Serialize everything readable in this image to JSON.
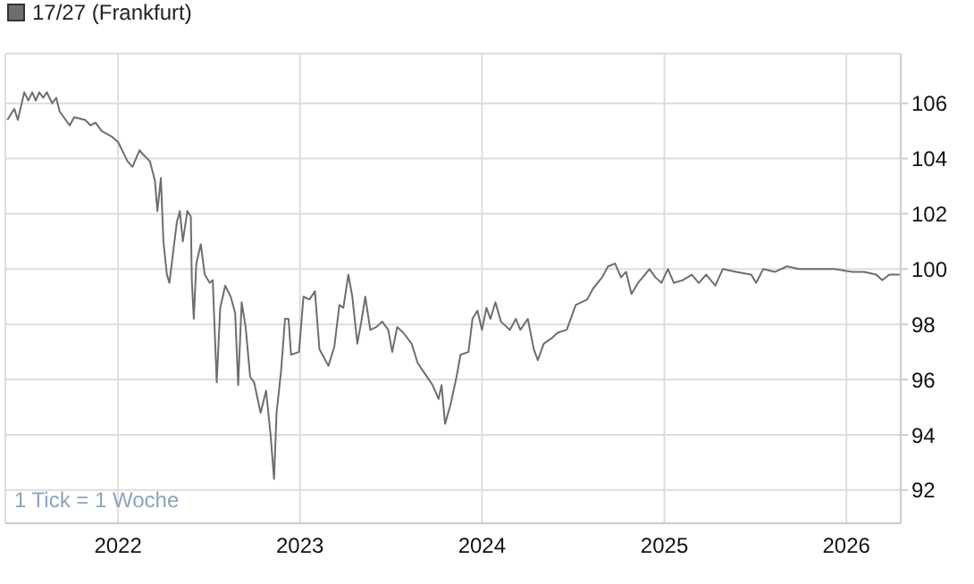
{
  "chart_data": {
    "type": "line",
    "legend": "top left",
    "grid": true,
    "marker": "none",
    "line_style": "solid",
    "annotations": [
      "1 Tick = 1 Woche"
    ],
    "xlim": [
      "2021-05-20",
      "2026-04-20"
    ],
    "xticks": [
      {
        "value": "2022-01-01",
        "label": "2022"
      },
      {
        "value": "2023-01-01",
        "label": "2023"
      },
      {
        "value": "2024-01-01",
        "label": "2024"
      },
      {
        "value": "2025-01-01",
        "label": "2025"
      },
      {
        "value": "2026-01-01",
        "label": "2026"
      }
    ],
    "ylim": [
      90.8,
      107.8
    ],
    "yticks": [
      92,
      94,
      96,
      98,
      100,
      102,
      104,
      106
    ],
    "x": [
      "2021-05-24",
      "2021-06-07",
      "2021-06-14",
      "2021-06-27",
      "2021-07-05",
      "2021-07-13",
      "2021-07-20",
      "2021-07-27",
      "2021-08-04",
      "2021-08-11",
      "2021-08-22",
      "2021-08-30",
      "2021-09-06",
      "2021-09-18",
      "2021-09-26",
      "2021-10-05",
      "2021-10-27",
      "2021-11-07",
      "2021-11-17",
      "2021-11-29",
      "2021-12-19",
      "2022-01-01",
      "2022-01-12",
      "2022-01-20",
      "2022-01-30",
      "2022-02-13",
      "2022-02-23",
      "2022-03-06",
      "2022-03-16",
      "2022-03-21",
      "2022-03-28",
      "2022-04-02",
      "2022-04-09",
      "2022-04-14",
      "2022-04-29",
      "2022-05-05",
      "2022-05-11",
      "2022-05-20",
      "2022-05-27",
      "2022-05-29",
      "2022-06-02",
      "2022-06-07",
      "2022-06-16",
      "2022-06-24",
      "2022-07-04",
      "2022-07-10",
      "2022-07-18",
      "2022-07-25",
      "2022-08-04",
      "2022-08-15",
      "2022-08-24",
      "2022-08-30",
      "2022-09-06",
      "2022-09-14",
      "2022-09-23",
      "2022-10-01",
      "2022-10-14",
      "2022-10-25",
      "2022-11-03",
      "2022-11-10",
      "2022-11-15",
      "2022-11-24",
      "2022-12-02",
      "2022-12-09",
      "2022-12-14",
      "2022-12-30",
      "2023-01-08",
      "2023-01-20",
      "2023-01-31",
      "2023-02-09",
      "2023-02-27",
      "2023-03-11",
      "2023-03-21",
      "2023-03-29",
      "2023-04-08",
      "2023-04-16",
      "2023-04-26",
      "2023-05-04",
      "2023-05-12",
      "2023-05-22",
      "2023-06-03",
      "2023-06-15",
      "2023-06-27",
      "2023-07-05",
      "2023-07-15",
      "2023-07-27",
      "2023-08-13",
      "2023-08-25",
      "2023-09-09",
      "2023-09-24",
      "2023-10-06",
      "2023-10-12",
      "2023-10-19",
      "2023-10-30",
      "2023-11-11",
      "2023-11-19",
      "2023-12-05",
      "2023-12-13",
      "2023-12-23",
      "2024-01-01",
      "2024-01-10",
      "2024-01-18",
      "2024-01-28",
      "2024-02-08",
      "2024-02-26",
      "2024-03-09",
      "2024-03-18",
      "2024-04-02",
      "2024-04-14",
      "2024-04-22",
      "2024-05-04",
      "2024-05-20",
      "2024-06-01",
      "2024-06-19",
      "2024-07-07",
      "2024-07-30",
      "2024-08-11",
      "2024-08-29",
      "2024-09-10",
      "2024-09-24",
      "2024-10-06",
      "2024-10-16",
      "2024-10-27",
      "2024-11-09",
      "2024-12-02",
      "2024-12-14",
      "2024-12-26",
      "2025-01-08",
      "2025-01-20",
      "2025-02-07",
      "2025-02-25",
      "2025-03-11",
      "2025-03-26",
      "2025-04-13",
      "2025-04-28",
      "2025-05-25",
      "2025-06-24",
      "2025-07-04",
      "2025-07-18",
      "2025-08-11",
      "2025-09-04",
      "2025-09-28",
      "2025-11-03",
      "2025-12-08",
      "2026-01-13",
      "2026-02-06",
      "2026-03-02",
      "2026-03-14",
      "2026-03-28",
      "2026-04-18"
    ],
    "series": [
      {
        "name": "17/27 (Frankfurt)",
        "color": "#6e6e6e",
        "values": [
          105.4,
          105.8,
          105.4,
          106.4,
          106.1,
          106.4,
          106.1,
          106.4,
          106.2,
          106.4,
          106.0,
          106.2,
          105.7,
          105.4,
          105.2,
          105.5,
          105.4,
          105.2,
          105.3,
          105.0,
          104.8,
          104.6,
          104.2,
          103.9,
          103.7,
          104.3,
          104.1,
          103.9,
          103.2,
          102.1,
          103.3,
          101.0,
          99.8,
          99.5,
          101.7,
          102.1,
          101.0,
          102.1,
          101.9,
          99.6,
          98.2,
          100.2,
          100.9,
          99.8,
          99.5,
          99.6,
          95.9,
          98.6,
          99.4,
          99.0,
          98.4,
          95.8,
          98.8,
          97.9,
          96.1,
          95.9,
          94.8,
          95.6,
          94.0,
          92.4,
          94.8,
          96.3,
          98.2,
          98.2,
          96.9,
          97.0,
          99.0,
          98.9,
          99.2,
          97.1,
          96.5,
          97.2,
          98.7,
          98.6,
          99.8,
          99.0,
          97.3,
          98.1,
          99.0,
          97.8,
          97.9,
          98.1,
          97.8,
          97.0,
          97.9,
          97.7,
          97.3,
          96.6,
          96.2,
          95.8,
          95.3,
          95.8,
          94.4,
          95.1,
          96.1,
          96.9,
          97.0,
          98.2,
          98.5,
          97.8,
          98.6,
          98.2,
          98.8,
          98.1,
          97.8,
          98.2,
          97.8,
          98.2,
          97.1,
          96.7,
          97.3,
          97.5,
          97.7,
          97.8,
          98.7,
          98.9,
          99.3,
          99.7,
          100.1,
          100.2,
          99.7,
          99.9,
          99.1,
          99.5,
          100.0,
          99.7,
          99.5,
          100.0,
          99.5,
          99.6,
          99.8,
          99.5,
          99.8,
          99.4,
          100.0,
          99.9,
          99.8,
          99.5,
          100.0,
          99.9,
          100.1,
          100.0,
          100.0,
          100.0,
          99.9,
          99.9,
          99.8,
          99.6,
          99.8,
          99.8
        ]
      }
    ]
  }
}
